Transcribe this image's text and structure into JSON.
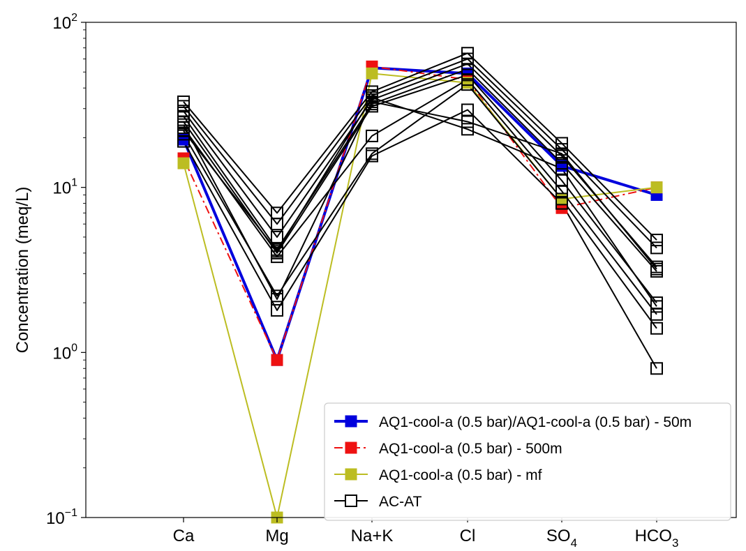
{
  "chart_data": {
    "type": "line",
    "categories": [
      "Ca",
      "Mg",
      "Na+K",
      "Cl",
      "SO4",
      "HCO3"
    ],
    "category_labels": [
      {
        "base": "Ca",
        "sub": ""
      },
      {
        "base": "Mg",
        "sub": ""
      },
      {
        "base": "Na+K",
        "sub": ""
      },
      {
        "base": "Cl",
        "sub": ""
      },
      {
        "base": "SO",
        "sub": "4"
      },
      {
        "base": "HCO",
        "sub": "3"
      }
    ],
    "ylabel": "Concentration (meq/L)",
    "yscale": "log",
    "ylim": [
      0.1,
      100
    ],
    "y_ticks": [
      {
        "base": "10",
        "exp": "−1"
      },
      {
        "base": "10",
        "exp": "0"
      },
      {
        "base": "10",
        "exp": "1"
      },
      {
        "base": "10",
        "exp": "2"
      }
    ],
    "grid": false,
    "legend_position": "lower-right",
    "series": [
      {
        "name": "AQ1-cool-a (0.5 bar)/AQ1-cool-a (0.5 bar) - 50m",
        "color": "#0000dd",
        "style": "solid-thick",
        "marker": "filled-square",
        "values": [
          19.5,
          0.9,
          53,
          49,
          13.5,
          9
        ]
      },
      {
        "name": "AQ1-cool-a (0.5 bar) - 500m",
        "color": "#ee1111",
        "style": "dashdot",
        "marker": "filled-square",
        "values": [
          15,
          0.9,
          54,
          45,
          7.5,
          10
        ]
      },
      {
        "name": "AQ1-cool-a (0.5 bar) - mf",
        "color": "#bcbd22",
        "style": "solid",
        "marker": "filled-square",
        "values": [
          14,
          0.1,
          49,
          43,
          8.5,
          10
        ]
      },
      {
        "name": "AC-AT",
        "color": "#000000",
        "style": "solid",
        "marker": "open-square",
        "legend": true,
        "values": [
          33,
          7,
          38,
          65,
          18.5,
          4.8
        ]
      },
      {
        "name": "AC-AT",
        "color": "#000000",
        "style": "solid",
        "marker": "open-square",
        "legend": false,
        "values": [
          31,
          6,
          36,
          60,
          17,
          4.3
        ]
      },
      {
        "name": "AC-AT",
        "color": "#000000",
        "style": "solid",
        "marker": "open-square",
        "legend": false,
        "values": [
          29,
          5,
          34,
          56,
          15.5,
          3.3
        ]
      },
      {
        "name": "AC-AT",
        "color": "#000000",
        "style": "solid",
        "marker": "open-square",
        "legend": false,
        "values": [
          27,
          4.2,
          32,
          52,
          14,
          3.1
        ]
      },
      {
        "name": "AC-AT",
        "color": "#000000",
        "style": "solid",
        "marker": "open-square",
        "legend": false,
        "values": [
          25,
          4.0,
          31,
          48,
          11,
          2.0
        ]
      },
      {
        "name": "AC-AT",
        "color": "#000000",
        "style": "solid",
        "marker": "open-square",
        "legend": false,
        "values": [
          23,
          3.8,
          20.5,
          45,
          9.5,
          1.7
        ]
      },
      {
        "name": "AC-AT",
        "color": "#000000",
        "style": "solid",
        "marker": "open-square",
        "legend": false,
        "values": [
          21,
          2.2,
          16,
          42,
          8.5,
          1.4
        ]
      },
      {
        "name": "AC-AT",
        "color": "#000000",
        "style": "solid",
        "marker": "open-square",
        "legend": false,
        "values": [
          19,
          1.8,
          15.5,
          29.5,
          8.0,
          0.8
        ]
      },
      {
        "name": "AC-AT",
        "color": "#000000",
        "style": "solid",
        "marker": "open-square",
        "legend": false,
        "values": [
          24,
          2.1,
          33,
          25,
          16,
          3.2
        ]
      },
      {
        "name": "AC-AT",
        "color": "#000000",
        "style": "solid",
        "marker": "open-square",
        "legend": false,
        "values": [
          22,
          4.1,
          35,
          22.5,
          13,
          1.9
        ]
      }
    ]
  }
}
